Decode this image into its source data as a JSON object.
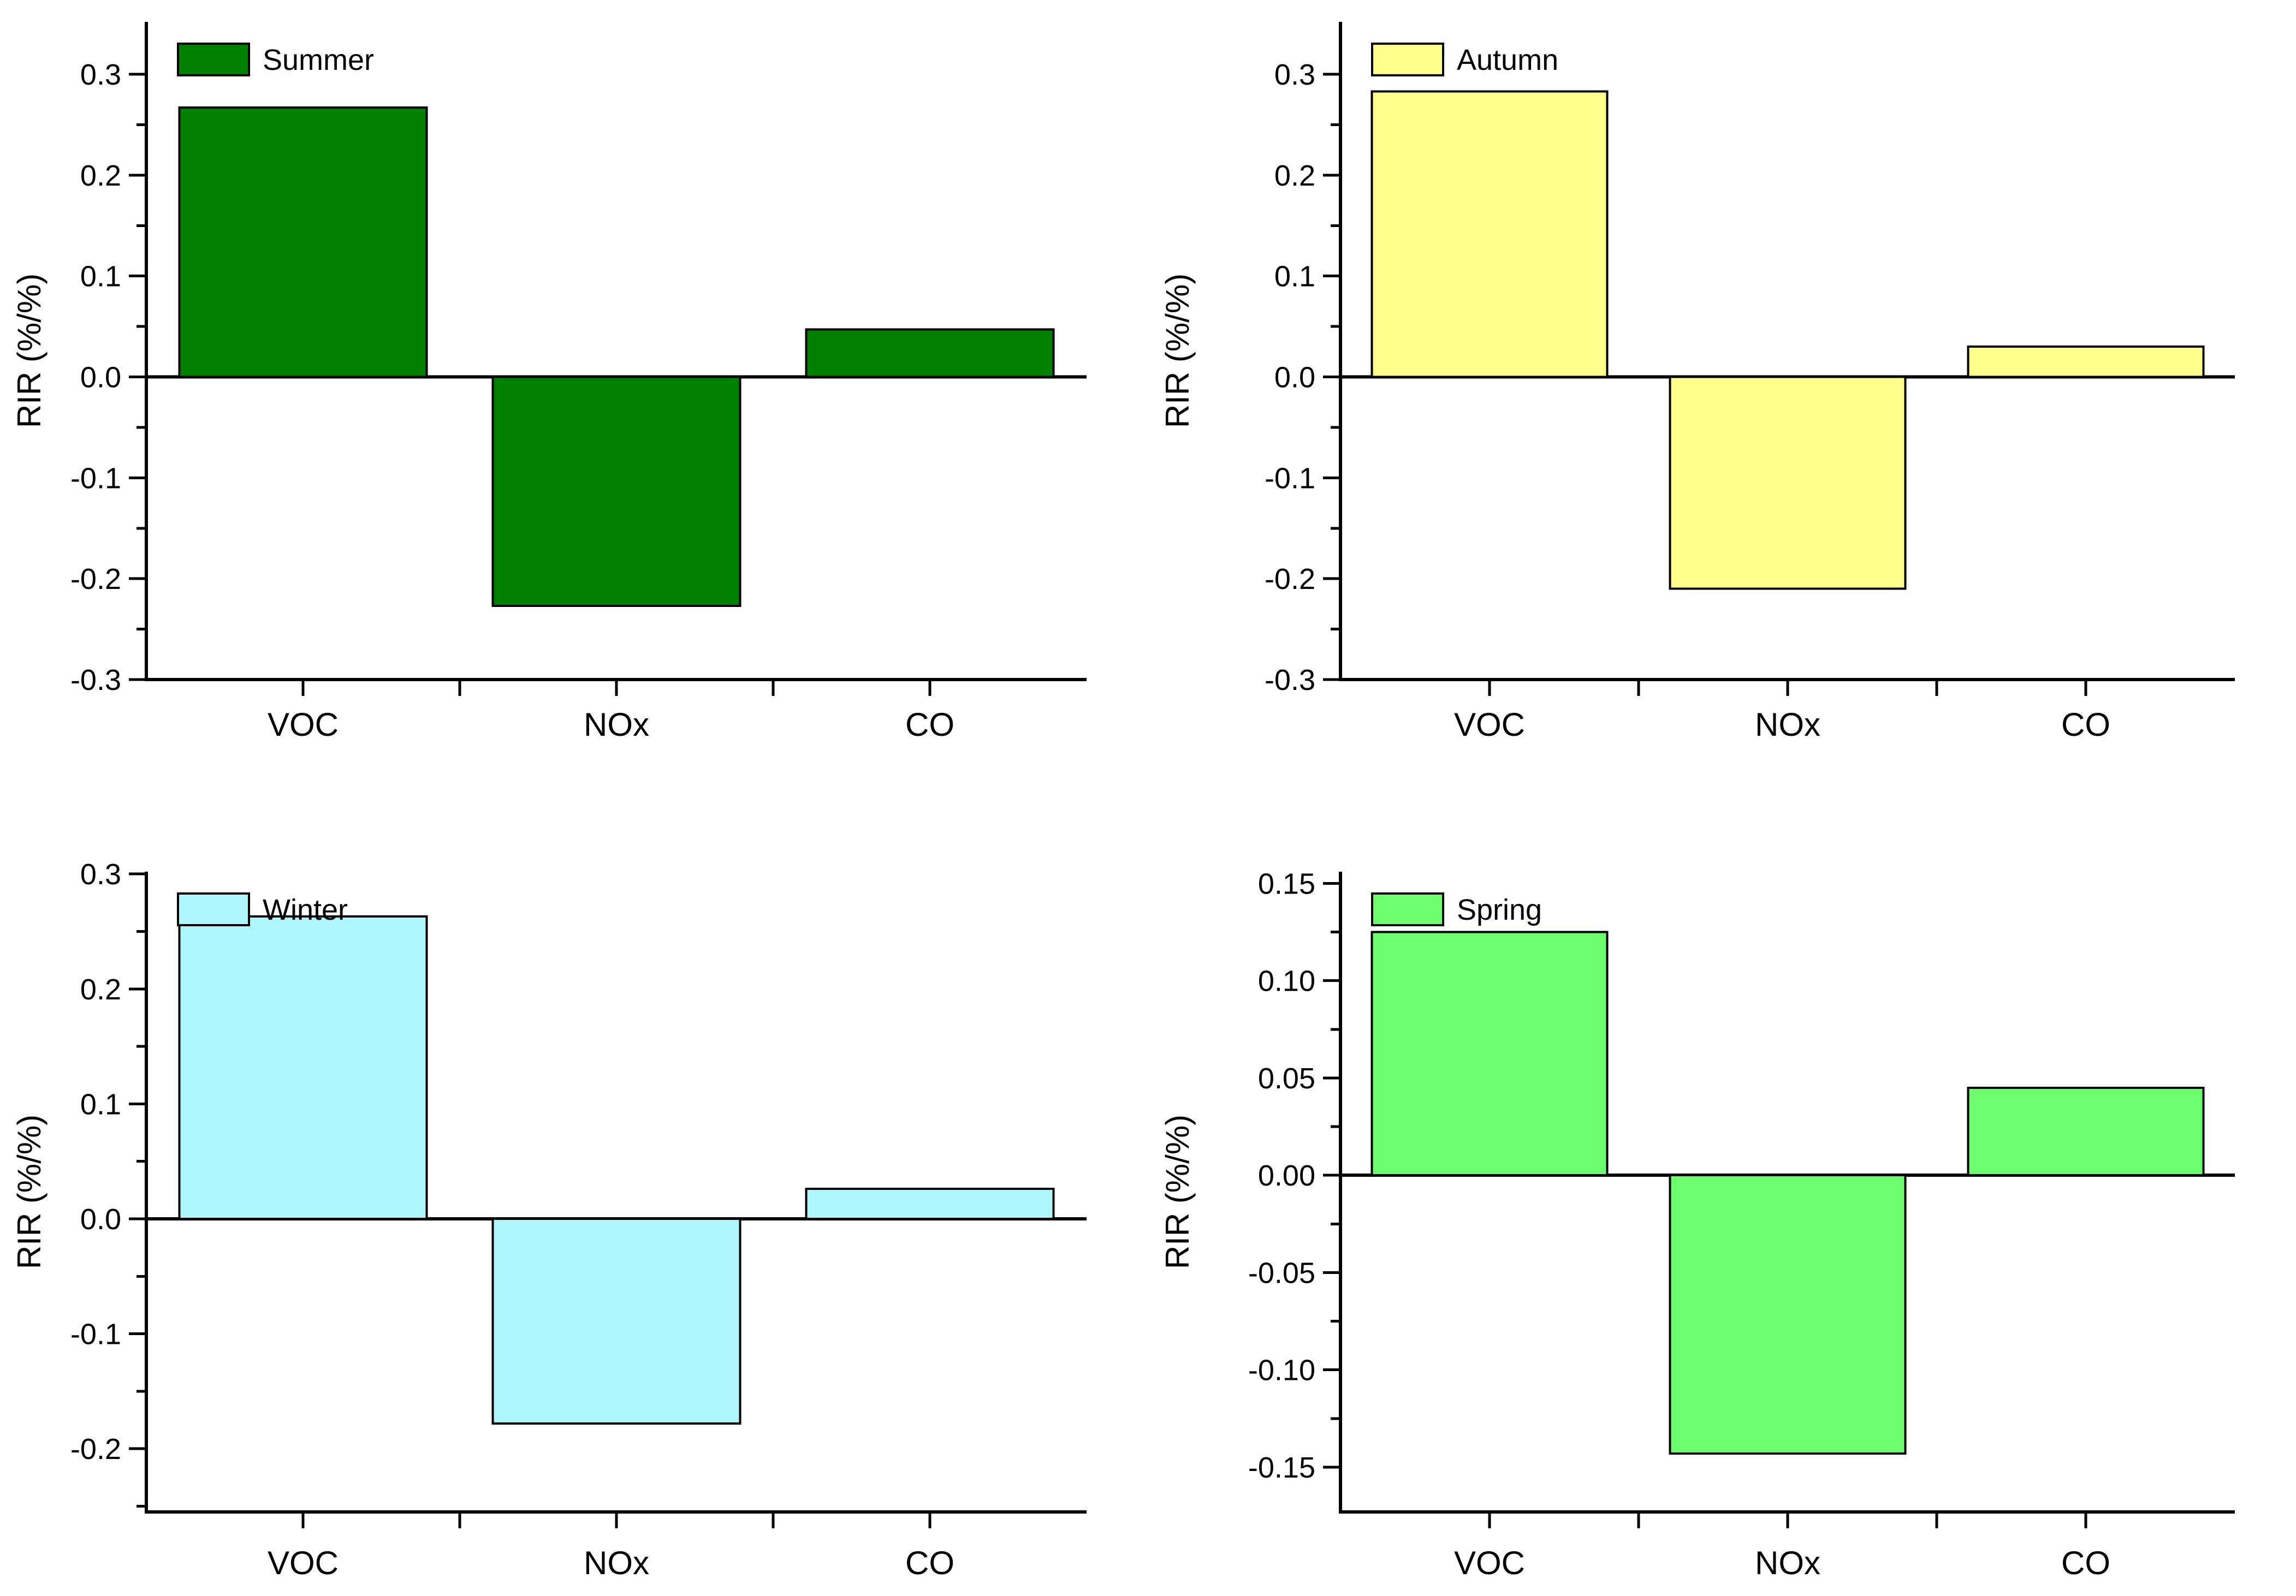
{
  "figure": {
    "background": "#ffffff",
    "categories": [
      "VOC",
      "NOx",
      "CO"
    ],
    "ylabel": "RIR (%/%)"
  },
  "chart_data": [
    {
      "type": "bar",
      "panel": "top-left",
      "legend": "Summer",
      "bar_color": "#008000",
      "categories": [
        "VOC",
        "NOx",
        "CO"
      ],
      "values": [
        0.267,
        -0.227,
        0.047
      ],
      "title": "",
      "xlabel": "",
      "ylabel": "RIR (%/%)",
      "ylim": [
        -0.3,
        0.352
      ],
      "yticks": [
        0.3,
        0.2,
        0.1,
        0,
        -0.1,
        -0.2,
        -0.3
      ],
      "ytick_labels": [
        "0.3",
        "0.2",
        "0.1",
        "0.0",
        "-0.1",
        "-0.2",
        "-0.3"
      ],
      "yminor": [
        0.25,
        0.15,
        0.05,
        -0.05,
        -0.15,
        -0.25
      ],
      "grid": false,
      "legend_position": "top-left"
    },
    {
      "type": "bar",
      "panel": "top-right",
      "legend": "Autumn",
      "bar_color": "#FFFF8C",
      "categories": [
        "VOC",
        "NOx",
        "CO"
      ],
      "values": [
        0.283,
        -0.21,
        0.03
      ],
      "title": "",
      "xlabel": "",
      "ylabel": "RIR (%/%)",
      "ylim": [
        -0.3,
        0.352
      ],
      "yticks": [
        0.3,
        0.2,
        0.1,
        0,
        -0.1,
        -0.2,
        -0.3
      ],
      "ytick_labels": [
        "0.3",
        "0.2",
        "0.1",
        "0.0",
        "-0.1",
        "-0.2",
        "-0.3"
      ],
      "yminor": [
        0.25,
        0.15,
        0.05,
        -0.05,
        -0.15,
        -0.25
      ],
      "grid": false,
      "legend_position": "top-left"
    },
    {
      "type": "bar",
      "panel": "bottom-left",
      "legend": "Winter",
      "bar_color": "#ADF6FC",
      "categories": [
        "VOC",
        "NOx",
        "CO"
      ],
      "values": [
        0.263,
        -0.178,
        0.026
      ],
      "title": "",
      "xlabel": "",
      "ylabel": "RIR (%/%)",
      "ylim": [
        -0.255,
        0.302
      ],
      "yticks": [
        0.3,
        0.2,
        0.1,
        0,
        -0.1,
        -0.2
      ],
      "ytick_labels": [
        "0.3",
        "0.2",
        "0.1",
        "0.0",
        "-0.1",
        "-0.2"
      ],
      "yminor": [
        0.25,
        0.15,
        0.05,
        -0.05,
        -0.15,
        -0.25
      ],
      "grid": false,
      "legend_position": "top-left"
    },
    {
      "type": "bar",
      "panel": "bottom-right",
      "legend": "Spring",
      "bar_color": "#6CFE6C",
      "categories": [
        "VOC",
        "NOx",
        "CO"
      ],
      "values": [
        0.125,
        -0.143,
        0.045
      ],
      "title": "",
      "xlabel": "",
      "ylabel": "RIR (%/%)",
      "ylim": [
        -0.173,
        0.156
      ],
      "yticks": [
        0.15,
        0.1,
        0.05,
        0,
        -0.05,
        -0.1,
        -0.15
      ],
      "ytick_labels": [
        "0.15",
        "0.10",
        "0.05",
        "0.00",
        "-0.05",
        "-0.10",
        "-0.15"
      ],
      "yminor": [
        0.125,
        0.075,
        0.025,
        -0.025,
        -0.075,
        -0.125
      ],
      "grid": false,
      "legend_position": "top-left"
    }
  ]
}
